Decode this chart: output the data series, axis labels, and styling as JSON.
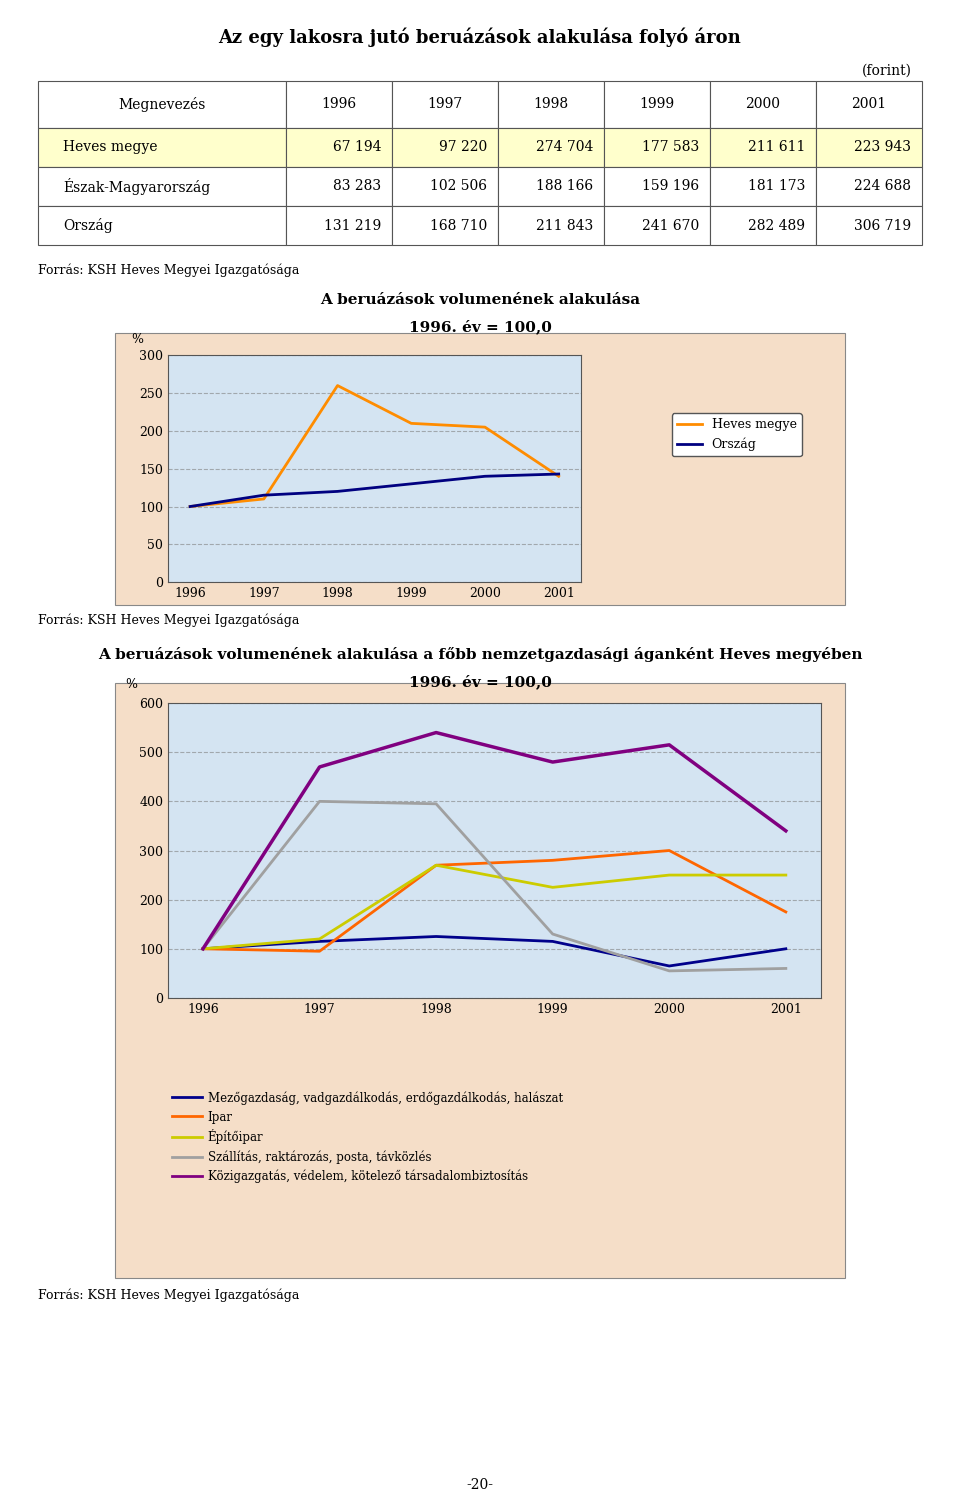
{
  "title": "Az egy lakosra jutó beruázások alakulása folyó áron",
  "forint_label": "(forint)",
  "table_headers": [
    "Megnevezés",
    "1996",
    "1997",
    "1998",
    "1999",
    "2000",
    "2001"
  ],
  "table_rows": [
    [
      "Heves megye",
      "67 194",
      "97 220",
      "274 704",
      "177 583",
      "211 611",
      "223 943"
    ],
    [
      "Észak-Magyarország",
      "83 283",
      "102 506",
      "188 166",
      "159 196",
      "181 173",
      "224 688"
    ],
    [
      "Ország",
      "131 219",
      "168 710",
      "211 843",
      "241 670",
      "282 489",
      "306 719"
    ]
  ],
  "heves_row_bg": "#FFFFCC",
  "forras_text": "Forrás: KSH Heves Megyei Igazgatósága",
  "chart1_title_line1": "A beruázások volumenének alakulása",
  "chart1_title_line2": "1996. év = 100,0",
  "chart1_years": [
    1996,
    1997,
    1998,
    1999,
    2000,
    2001
  ],
  "chart1_heves": [
    100,
    110,
    260,
    210,
    205,
    140
  ],
  "chart1_orszag": [
    100,
    115,
    120,
    130,
    140,
    143
  ],
  "chart1_heves_color": "#FF8C00",
  "chart1_orszag_color": "#000080",
  "chart1_ylim": [
    0,
    300
  ],
  "chart1_yticks": [
    0,
    50,
    100,
    150,
    200,
    250,
    300
  ],
  "chart1_legend_heves": "Heves megye",
  "chart1_legend_orszag": "Ország",
  "chart2_title_line1": "A beruázások volumenének alakulása a főbb nemzetgazdasági áganként Heves megyében",
  "chart2_title_line2": "1996. év = 100,0",
  "chart2_years": [
    1996,
    1997,
    1998,
    1999,
    2000,
    2001
  ],
  "chart2_mezog": [
    100,
    115,
    125,
    115,
    65,
    100
  ],
  "chart2_ipar": [
    100,
    95,
    270,
    280,
    300,
    175
  ],
  "chart2_epito": [
    100,
    120,
    270,
    225,
    250,
    250
  ],
  "chart2_szall": [
    100,
    400,
    395,
    130,
    55,
    60
  ],
  "chart2_kozigaz": [
    100,
    470,
    540,
    480,
    515,
    340
  ],
  "chart2_mezog_color": "#00008B",
  "chart2_ipar_color": "#FF6600",
  "chart2_epito_color": "#CCCC00",
  "chart2_szall_color": "#A0A0A0",
  "chart2_kozigaz_color": "#800080",
  "chart2_ylim": [
    0,
    600
  ],
  "chart2_yticks": [
    0,
    100,
    200,
    300,
    400,
    500,
    600
  ],
  "chart2_legend": [
    "Mezőgazdaság, vadgazdálkodás, erdőgazdálkodás, halászat",
    "Ipar",
    "Építőipar",
    "Szállítás, raktározás, posta, távközlés",
    "Közigazgatás, védelem, kötelező társadalombiztosítás"
  ],
  "page_number": "-20-",
  "chart_bg_color": "#D4E4F2",
  "outer_bg_color": "#F5DEC8"
}
